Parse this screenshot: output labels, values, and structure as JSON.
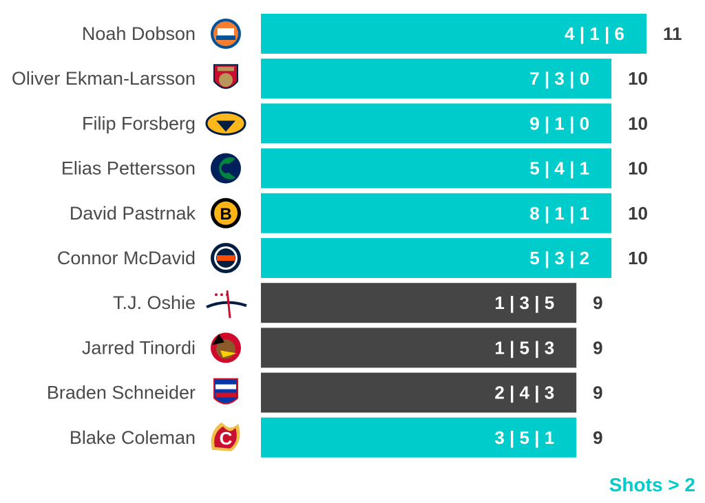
{
  "chart_data": {
    "type": "bar",
    "orientation": "horizontal",
    "xlim": [
      0,
      11
    ],
    "grid": false,
    "categories": [
      "Noah Dobson",
      "Oliver Ekman-Larsson",
      "Filip Forsberg",
      "Elias Pettersson",
      "David Pastrnak",
      "Connor McDavid",
      "T.J. Oshie",
      "Jarred Tinordi",
      "Braden Schneider",
      "Blake Coleman"
    ],
    "values": [
      11,
      10,
      10,
      10,
      10,
      10,
      9,
      9,
      9,
      9
    ],
    "bar_labels": [
      "4 | 1 | 6",
      "7 | 3 | 0",
      "9 | 1 | 0",
      "5 | 4 | 1",
      "8 | 1 | 1",
      "5 | 3 | 2",
      "1 | 3 | 5",
      "1 | 5 | 3",
      "2 | 4 | 3",
      "3 | 5 | 1"
    ],
    "bar_colors": [
      "#00cccc",
      "#00cccc",
      "#00cccc",
      "#00cccc",
      "#00cccc",
      "#00cccc",
      "#454545",
      "#454545",
      "#454545",
      "#00cccc"
    ],
    "team_icons": [
      "islanders-logo",
      "panthers-logo",
      "predators-logo",
      "canucks-logo",
      "bruins-logo",
      "oilers-logo",
      "capitals-logo",
      "blackhawks-logo",
      "rangers-logo",
      "flames-logo"
    ],
    "annotation": "Shots > 2"
  },
  "colors": {
    "accent": "#00cccc",
    "dark": "#454545",
    "text": "#4a4a4a"
  }
}
